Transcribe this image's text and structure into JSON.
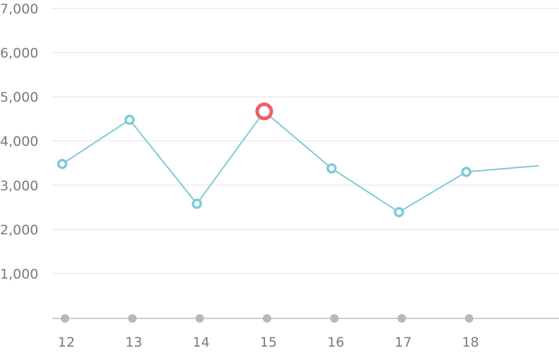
{
  "chart_data": {
    "type": "line",
    "title": "",
    "xlabel": "",
    "ylabel": "",
    "ylim": [
      0,
      7000
    ],
    "grid": true,
    "y_ticks": [
      {
        "value": 1000,
        "label": "1,000"
      },
      {
        "value": 2000,
        "label": "2,000"
      },
      {
        "value": 3000,
        "label": "3,000"
      },
      {
        "value": 4000,
        "label": "4,000"
      },
      {
        "value": 5000,
        "label": "5,000"
      },
      {
        "value": 6000,
        "label": "6,000"
      },
      {
        "value": 7000,
        "label": "7,000"
      }
    ],
    "categories": [
      "12",
      "13",
      "14",
      "15",
      "16",
      "17",
      "18"
    ],
    "values": [
      3480,
      4480,
      2580,
      4670,
      3380,
      2390,
      3300
    ],
    "trailing_value": 3440,
    "highlighted_category": "15",
    "colors": {
      "line": "#7ecbd6",
      "highlight": "#ef5d67",
      "grid": "#ececec",
      "axis": "#cfcfcf",
      "category_dot": "#b8b8b8",
      "tick_text": "#7a7a7a"
    }
  }
}
